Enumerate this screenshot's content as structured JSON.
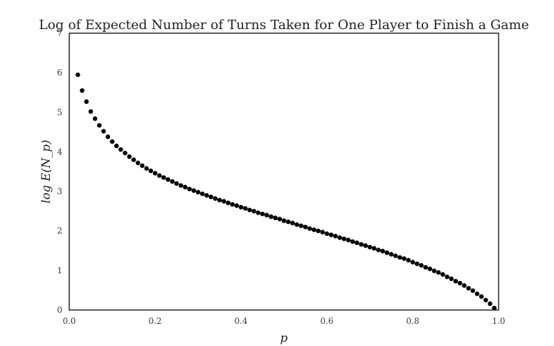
{
  "chart_data": {
    "type": "scatter",
    "title": "Log of Expected Number of Turns Taken for One Player to Finish a Game",
    "xlabel": "p",
    "ylabel": "log E(N_p)",
    "xlim": [
      0.0,
      1.0
    ],
    "ylim": [
      0,
      7
    ],
    "xticks": [
      0.0,
      0.2,
      0.4,
      0.6,
      0.8,
      1.0
    ],
    "xtick_labels": [
      "0.0",
      "0.2",
      "0.4",
      "0.6",
      "0.8",
      "1.0"
    ],
    "yticks": [
      0,
      1,
      2,
      3,
      4,
      5,
      6,
      7
    ],
    "ytick_labels": [
      "0",
      "1",
      "2",
      "3",
      "4",
      "5",
      "6",
      "7"
    ],
    "grid": false,
    "marker_color": "#000000",
    "x": [
      0.02,
      0.03,
      0.04,
      0.05,
      0.06,
      0.07,
      0.08,
      0.09,
      0.1,
      0.11,
      0.12,
      0.13,
      0.14,
      0.15,
      0.16,
      0.17,
      0.18,
      0.19,
      0.2,
      0.21,
      0.22,
      0.23,
      0.24,
      0.25,
      0.26,
      0.27,
      0.28,
      0.29,
      0.3,
      0.31,
      0.32,
      0.33,
      0.34,
      0.35,
      0.36,
      0.37,
      0.38,
      0.39,
      0.4,
      0.41,
      0.42,
      0.43,
      0.44,
      0.45,
      0.46,
      0.47,
      0.48,
      0.49,
      0.5,
      0.51,
      0.52,
      0.53,
      0.54,
      0.55,
      0.56,
      0.57,
      0.58,
      0.59,
      0.6,
      0.61,
      0.62,
      0.63,
      0.64,
      0.65,
      0.66,
      0.67,
      0.68,
      0.69,
      0.7,
      0.71,
      0.72,
      0.73,
      0.74,
      0.75,
      0.76,
      0.77,
      0.78,
      0.79,
      0.8,
      0.81,
      0.82,
      0.83,
      0.84,
      0.85,
      0.86,
      0.87,
      0.88,
      0.89,
      0.9,
      0.91,
      0.92,
      0.93,
      0.94,
      0.95,
      0.96,
      0.97,
      0.98,
      0.99
    ],
    "y": [
      5.95,
      5.55,
      5.27,
      5.02,
      4.84,
      4.67,
      4.52,
      4.38,
      4.26,
      4.15,
      4.06,
      3.97,
      3.88,
      3.8,
      3.72,
      3.65,
      3.58,
      3.52,
      3.46,
      3.4,
      3.35,
      3.3,
      3.25,
      3.2,
      3.15,
      3.11,
      3.06,
      3.02,
      2.98,
      2.94,
      2.9,
      2.86,
      2.82,
      2.78,
      2.75,
      2.71,
      2.67,
      2.64,
      2.6,
      2.57,
      2.53,
      2.5,
      2.46,
      2.43,
      2.4,
      2.36,
      2.33,
      2.3,
      2.26,
      2.23,
      2.2,
      2.16,
      2.13,
      2.1,
      2.06,
      2.03,
      2.0,
      1.97,
      1.93,
      1.9,
      1.87,
      1.83,
      1.8,
      1.77,
      1.73,
      1.7,
      1.66,
      1.63,
      1.59,
      1.56,
      1.52,
      1.49,
      1.45,
      1.41,
      1.37,
      1.33,
      1.3,
      1.26,
      1.21,
      1.17,
      1.13,
      1.08,
      1.04,
      0.99,
      0.95,
      0.9,
      0.84,
      0.79,
      0.73,
      0.68,
      0.62,
      0.55,
      0.49,
      0.41,
      0.34,
      0.25,
      0.16,
      0.05
    ]
  }
}
